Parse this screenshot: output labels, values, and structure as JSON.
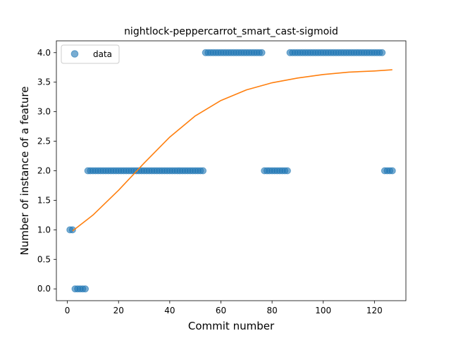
{
  "chart_data": {
    "type": "scatter",
    "title": "nightlock-peppercarrot_smart_cast-sigmoid",
    "xlabel": "Commit number",
    "ylabel": "Number of instance of a feature",
    "xlim": [
      -4.3,
      132.3
    ],
    "ylim": [
      -0.2,
      4.2
    ],
    "xticks": [
      0,
      20,
      40,
      60,
      80,
      100,
      120
    ],
    "yticks": [
      0.0,
      0.5,
      1.0,
      1.5,
      2.0,
      2.5,
      3.0,
      3.5,
      4.0
    ],
    "ytick_labels": [
      "0.0",
      "0.5",
      "1.0",
      "1.5",
      "2.0",
      "2.5",
      "3.0",
      "3.5",
      "4.0"
    ],
    "grid": false,
    "legend_position": "upper-left",
    "series": [
      {
        "name": "data",
        "kind": "scatter",
        "color": "#1f77b4",
        "points": [
          [
            1,
            1
          ],
          [
            2,
            1
          ],
          [
            3,
            0
          ],
          [
            4,
            0
          ],
          [
            5,
            0
          ],
          [
            6,
            0
          ],
          [
            7,
            0
          ],
          [
            8,
            2
          ],
          [
            9,
            2
          ],
          [
            10,
            2
          ],
          [
            11,
            2
          ],
          [
            12,
            2
          ],
          [
            13,
            2
          ],
          [
            14,
            2
          ],
          [
            15,
            2
          ],
          [
            16,
            2
          ],
          [
            17,
            2
          ],
          [
            18,
            2
          ],
          [
            19,
            2
          ],
          [
            20,
            2
          ],
          [
            21,
            2
          ],
          [
            22,
            2
          ],
          [
            23,
            2
          ],
          [
            24,
            2
          ],
          [
            25,
            2
          ],
          [
            26,
            2
          ],
          [
            27,
            2
          ],
          [
            28,
            2
          ],
          [
            29,
            2
          ],
          [
            30,
            2
          ],
          [
            31,
            2
          ],
          [
            32,
            2
          ],
          [
            33,
            2
          ],
          [
            34,
            2
          ],
          [
            35,
            2
          ],
          [
            36,
            2
          ],
          [
            37,
            2
          ],
          [
            38,
            2
          ],
          [
            39,
            2
          ],
          [
            40,
            2
          ],
          [
            41,
            2
          ],
          [
            42,
            2
          ],
          [
            43,
            2
          ],
          [
            44,
            2
          ],
          [
            45,
            2
          ],
          [
            46,
            2
          ],
          [
            47,
            2
          ],
          [
            48,
            2
          ],
          [
            49,
            2
          ],
          [
            50,
            2
          ],
          [
            51,
            2
          ],
          [
            52,
            2
          ],
          [
            53,
            2
          ],
          [
            54,
            4
          ],
          [
            55,
            4
          ],
          [
            56,
            4
          ],
          [
            57,
            4
          ],
          [
            58,
            4
          ],
          [
            59,
            4
          ],
          [
            60,
            4
          ],
          [
            61,
            4
          ],
          [
            62,
            4
          ],
          [
            63,
            4
          ],
          [
            64,
            4
          ],
          [
            65,
            4
          ],
          [
            66,
            4
          ],
          [
            67,
            4
          ],
          [
            68,
            4
          ],
          [
            69,
            4
          ],
          [
            70,
            4
          ],
          [
            71,
            4
          ],
          [
            72,
            4
          ],
          [
            73,
            4
          ],
          [
            74,
            4
          ],
          [
            75,
            4
          ],
          [
            76,
            4
          ],
          [
            77,
            2
          ],
          [
            78,
            2
          ],
          [
            79,
            2
          ],
          [
            80,
            2
          ],
          [
            81,
            2
          ],
          [
            82,
            2
          ],
          [
            83,
            2
          ],
          [
            84,
            2
          ],
          [
            85,
            2
          ],
          [
            86,
            2
          ],
          [
            87,
            4
          ],
          [
            88,
            4
          ],
          [
            89,
            4
          ],
          [
            90,
            4
          ],
          [
            91,
            4
          ],
          [
            92,
            4
          ],
          [
            93,
            4
          ],
          [
            94,
            4
          ],
          [
            95,
            4
          ],
          [
            96,
            4
          ],
          [
            97,
            4
          ],
          [
            98,
            4
          ],
          [
            99,
            4
          ],
          [
            100,
            4
          ],
          [
            101,
            4
          ],
          [
            102,
            4
          ],
          [
            103,
            4
          ],
          [
            104,
            4
          ],
          [
            105,
            4
          ],
          [
            106,
            4
          ],
          [
            107,
            4
          ],
          [
            108,
            4
          ],
          [
            109,
            4
          ],
          [
            110,
            4
          ],
          [
            111,
            4
          ],
          [
            112,
            4
          ],
          [
            113,
            4
          ],
          [
            114,
            4
          ],
          [
            115,
            4
          ],
          [
            116,
            4
          ],
          [
            117,
            4
          ],
          [
            118,
            4
          ],
          [
            119,
            4
          ],
          [
            120,
            4
          ],
          [
            121,
            4
          ],
          [
            122,
            4
          ],
          [
            123,
            4
          ],
          [
            124,
            2
          ],
          [
            125,
            2
          ],
          [
            126,
            2
          ],
          [
            127,
            2
          ]
        ]
      },
      {
        "kind": "line",
        "color": "#ff7f0e",
        "points": [
          [
            2,
            0.98
          ],
          [
            10,
            1.25
          ],
          [
            20,
            1.67
          ],
          [
            30,
            2.13
          ],
          [
            40,
            2.57
          ],
          [
            50,
            2.93
          ],
          [
            60,
            3.19
          ],
          [
            70,
            3.37
          ],
          [
            80,
            3.49
          ],
          [
            90,
            3.57
          ],
          [
            100,
            3.63
          ],
          [
            110,
            3.67
          ],
          [
            120,
            3.69
          ],
          [
            127,
            3.71
          ]
        ]
      }
    ]
  }
}
